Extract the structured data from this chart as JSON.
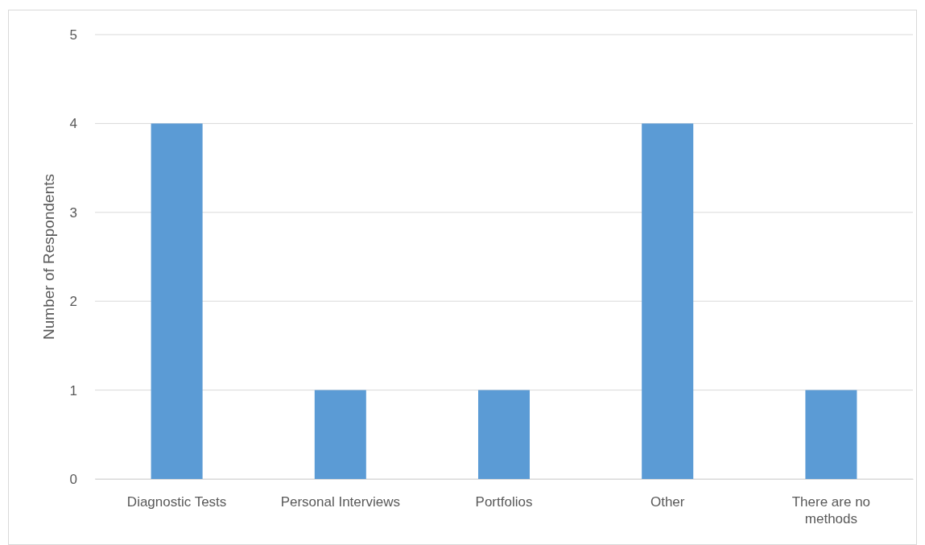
{
  "chart_data": {
    "type": "bar",
    "ylabel": "Number of Respondents",
    "categories": [
      "Diagnostic Tests",
      "Personal Interviews",
      "Portfolios",
      "Other",
      "There are no methods"
    ],
    "values": [
      4,
      1,
      1,
      4,
      1
    ],
    "color": "#5b9bd5",
    "ylim": [
      0,
      5
    ],
    "yticks": [
      0,
      1,
      2,
      3,
      4,
      5
    ],
    "grid": "y"
  }
}
